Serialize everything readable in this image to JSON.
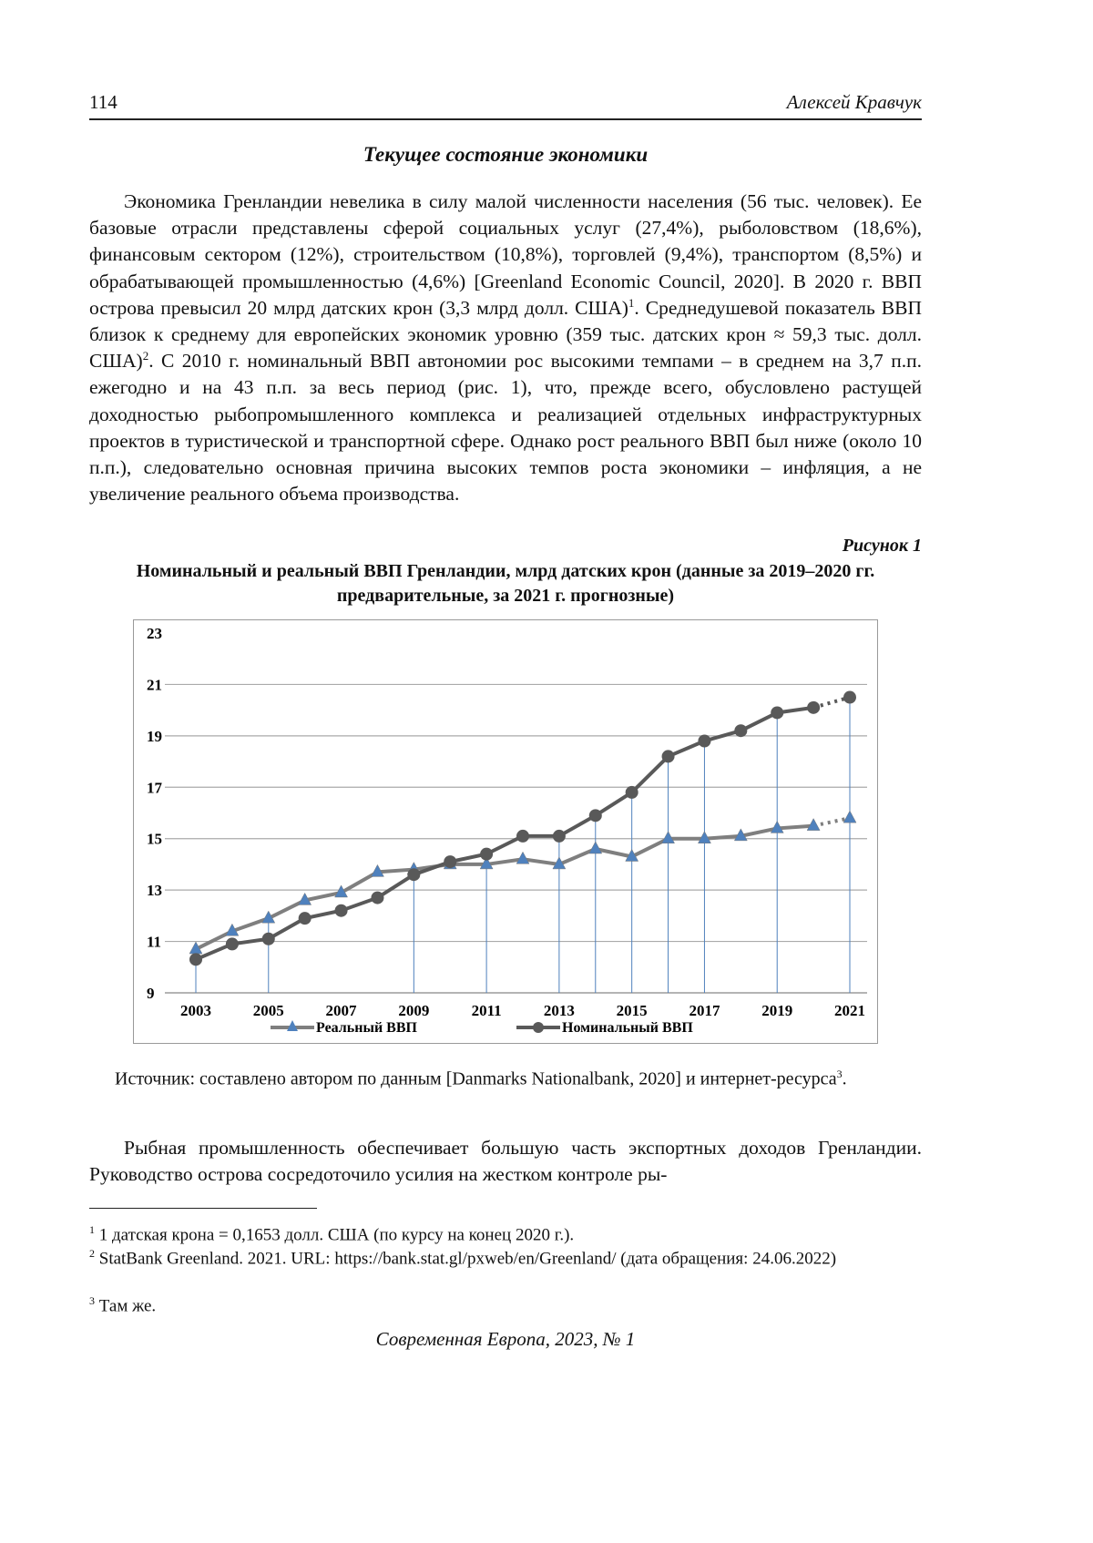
{
  "header": {
    "page_number": "114",
    "author": "Алексей Кравчук"
  },
  "section_title": "Текущее состояние экономики",
  "paragraph1": [
    "Экономика Гренландии невелика в силу малой численности населения (56 тыс. человек). Ее базовые отрасли представлены сферой социальных услуг (27,4%), рыболовством (18,6%), финансовым сектором (12%), строительством (10,8%), торговлей (9,4%), транспортом (8,5%) и обрабатывающей промышленностью (4,6%) [Greenland Economic Council, 2020]. В 2020 г. ВВП острова превысил 20 млрд датских крон (3,3 млрд долл. США)",
    "1",
    ". Среднедушевой показатель ВВП близок к среднему для европейских экономик уровню (359 тыс. датских крон ≈ 59,3 тыс. долл. США)",
    "2",
    ". С 2010 г. номинальный ВВП автономии рос высокими темпами – в среднем на 3,7 п.п. ежегодно и на 43 п.п. за весь период (рис. 1), что, прежде всего, обусловлено растущей доходностью рыбопромышленного комплекса и реализацией отдельных инфраструктурных проектов в туристической и транспортной сфере. Однако рост реального ВВП был ниже (около 10 п.п.), следовательно основная причина высоких темпов роста экономики – инфляция, а не увеличение реального объема производства."
  ],
  "figure_label": "Рисунок 1",
  "figure_title": "Номинальный и реальный ВВП Гренландии, млрд датских крон (данные за 2019–2020 гг. предварительные, за 2021 г. прогнозные)",
  "chart_data": {
    "type": "line",
    "title": "Номинальный и реальный ВВП Гренландии, млрд датских крон",
    "x": [
      2003,
      2004,
      2005,
      2006,
      2007,
      2008,
      2009,
      2010,
      2011,
      2012,
      2013,
      2014,
      2015,
      2016,
      2017,
      2018,
      2019,
      2020,
      2021
    ],
    "xticks": [
      "2003",
      "2005",
      "2007",
      "2009",
      "2011",
      "2013",
      "2015",
      "2017",
      "2019",
      "2021"
    ],
    "yticks": [
      "9",
      "11",
      "13",
      "15",
      "17",
      "19",
      "21",
      "23"
    ],
    "ylim": [
      9,
      23
    ],
    "grid": true,
    "legend_position": "bottom",
    "forecast_from": 2020,
    "drop_line_years": [
      2003,
      2005,
      2009,
      2011,
      2013,
      2014,
      2015,
      2016,
      2017,
      2019,
      2021
    ],
    "series": [
      {
        "name": "Реальный ВВП",
        "marker": "triangle",
        "color": "#7f7f7f",
        "marker_color": "#4f81bd",
        "values": [
          10.7,
          11.4,
          11.9,
          12.6,
          12.9,
          13.7,
          13.8,
          14.0,
          14.0,
          14.2,
          14.0,
          14.6,
          14.3,
          15.0,
          15.0,
          15.1,
          15.4,
          15.5,
          15.8
        ]
      },
      {
        "name": "Номинальный ВВП",
        "marker": "circle",
        "color": "#595959",
        "marker_color": "#595959",
        "values": [
          10.3,
          10.9,
          11.1,
          11.9,
          12.2,
          12.7,
          13.6,
          14.1,
          14.4,
          15.1,
          15.1,
          15.9,
          16.8,
          18.2,
          18.8,
          19.2,
          19.9,
          20.1,
          20.5
        ]
      }
    ]
  },
  "source_note": [
    "Источник: составлено автором по данным [Danmarks Nationalbank, 2020] и интернет-ресурса",
    "3",
    "."
  ],
  "paragraph2": "Рыбная промышленность обеспечивает большую часть экспортных доходов Гренландии. Руководство острова сосредоточило усилия на жестком контроле ры-",
  "footnotes": [
    {
      "mark": "1",
      "text": " 1 датская крона = 0,1653 долл. США (по курсу на конец 2020 г.)."
    },
    {
      "mark": "2",
      "text": " StatBank Greenland. 2021. URL: https://bank.stat.gl/pxweb/en/Greenland/ (дата обращения: 24.06.2022)"
    },
    {
      "mark": "3",
      "text": " Там же."
    }
  ],
  "footer": "Современная Европа, 2023, № 1"
}
